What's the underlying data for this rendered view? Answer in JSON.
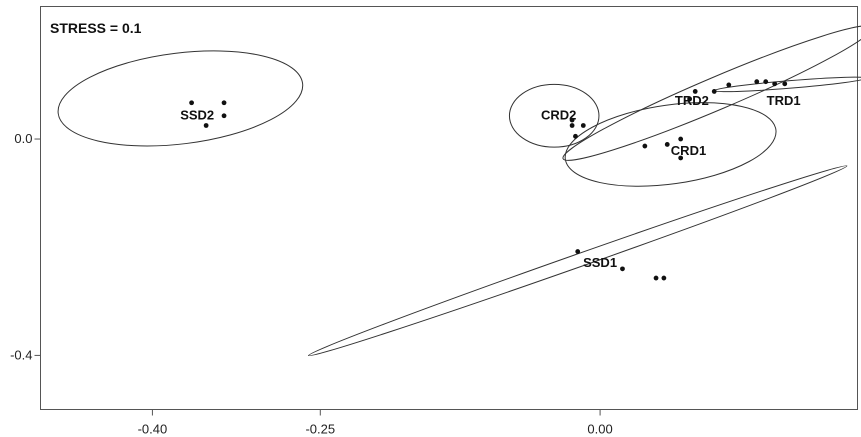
{
  "chart_data": {
    "type": "scatter",
    "annotation": "STRESS = 0.1",
    "xlim": [
      -0.5,
      0.23
    ],
    "ylim": [
      -0.5,
      0.245
    ],
    "x_ticks": [
      {
        "value": -0.4,
        "label": "-0.40"
      },
      {
        "value": -0.25,
        "label": "-0.25"
      },
      {
        "value": 0.0,
        "label": "0.00"
      }
    ],
    "y_ticks": [
      {
        "value": 0.0,
        "label": "0.0"
      },
      {
        "value": -0.4,
        "label": "-0.4"
      }
    ],
    "grid": false,
    "groups": [
      {
        "label": "SSD2",
        "label_pos": [
          -0.36,
          0.045
        ],
        "points": [
          [
            -0.365,
            0.067
          ],
          [
            -0.336,
            0.067
          ],
          [
            -0.336,
            0.043
          ],
          [
            -0.352,
            0.025
          ]
        ],
        "ellipse": {
          "cx": -0.375,
          "cy": 0.075,
          "rx": 0.11,
          "ry": 0.084,
          "angle": -7
        }
      },
      {
        "label": "SSD1",
        "label_pos": [
          0.0,
          -0.227
        ],
        "points": [
          [
            -0.02,
            -0.208
          ],
          [
            0.02,
            -0.24
          ],
          [
            0.05,
            -0.257
          ],
          [
            0.057,
            -0.257
          ]
        ],
        "ellipse": {
          "cx": -0.02,
          "cy": -0.225,
          "rx": 0.255,
          "ry": 0.012,
          "angle": -19.4
        }
      },
      {
        "label": "CRD2",
        "label_pos": [
          -0.037,
          0.045
        ],
        "points": [
          [
            -0.025,
            0.025
          ],
          [
            -0.015,
            0.025
          ],
          [
            -0.022,
            0.005
          ],
          [
            -0.025,
            0.035
          ]
        ],
        "ellipse": {
          "cx": -0.041,
          "cy": 0.043,
          "rx": 0.04,
          "ry": 0.058,
          "angle": 0
        }
      },
      {
        "label": "TRD2",
        "label_pos": [
          0.082,
          0.072
        ],
        "points": [
          [
            0.085,
            0.088
          ],
          [
            0.115,
            0.1
          ],
          [
            0.08,
            0.074
          ],
          [
            0.102,
            0.088
          ]
        ],
        "ellipse": {
          "cx": 0.105,
          "cy": 0.085,
          "rx": 0.15,
          "ry": 0.03,
          "angle": -23
        }
      },
      {
        "label": "CRD1",
        "label_pos": [
          0.079,
          -0.02
        ],
        "points": [
          [
            0.04,
            -0.013
          ],
          [
            0.072,
            0.0
          ],
          [
            0.06,
            -0.01
          ],
          [
            0.072,
            -0.035
          ]
        ],
        "ellipse": {
          "cx": 0.063,
          "cy": -0.01,
          "rx": 0.095,
          "ry": 0.073,
          "angle": -8
        }
      },
      {
        "label": "TRD1",
        "label_pos": [
          0.164,
          0.072
        ],
        "points": [
          [
            0.14,
            0.106
          ],
          [
            0.148,
            0.106
          ],
          [
            0.156,
            0.102
          ],
          [
            0.165,
            0.102
          ]
        ],
        "ellipse": {
          "cx": 0.17,
          "cy": 0.101,
          "rx": 0.068,
          "ry": 0.007,
          "angle": -4.7
        }
      }
    ]
  }
}
